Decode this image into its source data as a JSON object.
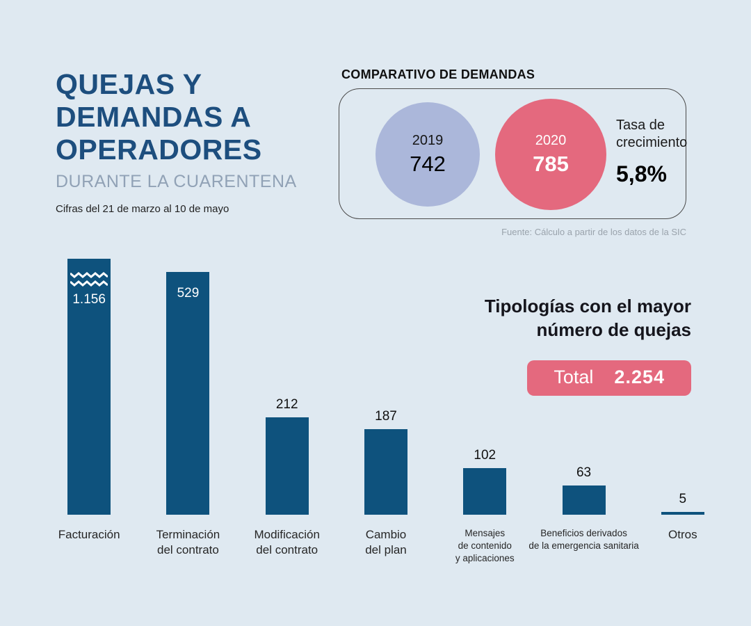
{
  "header": {
    "title_lines": [
      "QUEJAS Y",
      "DEMANDAS A",
      "OPERADORES"
    ],
    "subtitle": "DURANTE LA CUARENTENA",
    "period": "Cifras del 21 de marzo al 10 de mayo"
  },
  "comparison": {
    "title": "COMPARATIVO DE DEMANDAS",
    "years": [
      {
        "year": "2019",
        "value": "742",
        "color": "#abb7da"
      },
      {
        "year": "2020",
        "value": "785",
        "color": "#e4697e"
      }
    ],
    "growth_label": "Tasa de crecimiento",
    "growth_value": "5,8%",
    "source": "Fuente: Cálculo a partir de los datos de la SIC"
  },
  "typology": {
    "title_lines": [
      "Tipologías con el mayor",
      "número de quejas"
    ],
    "total_label": "Total",
    "total_value": "2.254",
    "pill_color": "#e4697e"
  },
  "colors": {
    "background": "#dfe9f1",
    "title_blue": "#1d4e7e",
    "bar_blue": "#0e527d",
    "pink": "#e4697e",
    "lavender": "#abb7da"
  },
  "chart_data": {
    "type": "bar",
    "title": "Tipologías con el mayor número de quejas",
    "categories": [
      [
        "Facturación"
      ],
      [
        "Terminación",
        "del contrato"
      ],
      [
        "Modificación",
        "del contrato"
      ],
      [
        "Cambio",
        "del plan"
      ],
      [
        "Mensajes",
        "de contenido",
        "y aplicaciones"
      ],
      [
        "Beneficios derivados",
        "de la emergencia sanitaria"
      ],
      [
        "Otros"
      ]
    ],
    "values": [
      1156,
      529,
      212,
      187,
      102,
      63,
      5
    ],
    "value_labels": [
      "1.156",
      "529",
      "212",
      "187",
      "102",
      "63",
      "5"
    ],
    "label_inside": [
      true,
      true,
      false,
      false,
      false,
      false,
      false
    ],
    "truncated": [
      true,
      false,
      false,
      false,
      false,
      false,
      false
    ],
    "bar_color": "#0e527d",
    "total": 2254,
    "grid": false,
    "legend": false,
    "xlabel": "",
    "ylabel": ""
  }
}
